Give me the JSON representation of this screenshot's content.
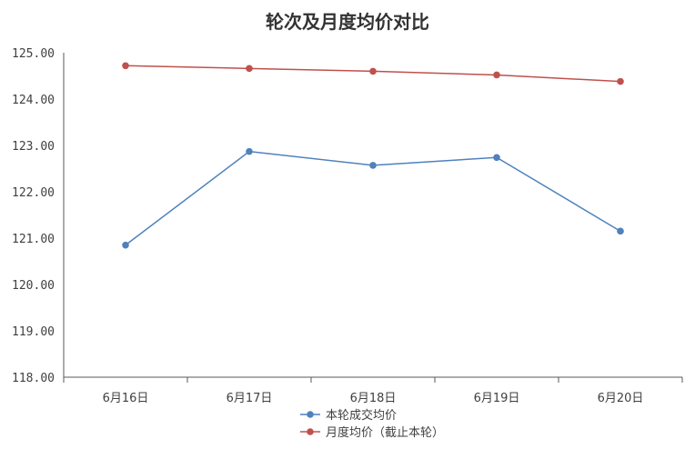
{
  "chart_data": {
    "type": "line",
    "title": "轮次及月度均价对比",
    "categories": [
      "6月16日",
      "6月17日",
      "6月18日",
      "6月19日",
      "6月20日"
    ],
    "ylim": [
      118.0,
      125.0
    ],
    "yticks": [
      "118.00",
      "119.00",
      "120.00",
      "121.00",
      "122.00",
      "123.00",
      "124.00",
      "125.00"
    ],
    "grid": false,
    "legend_position": "bottom",
    "series": [
      {
        "name": "本轮成交均价",
        "color": "#4f81bd",
        "values": [
          120.85,
          122.87,
          122.57,
          122.74,
          121.15
        ]
      },
      {
        "name": "月度均价（截止本轮）",
        "color": "#c0504d",
        "values": [
          124.72,
          124.66,
          124.6,
          124.52,
          124.38
        ]
      }
    ]
  }
}
